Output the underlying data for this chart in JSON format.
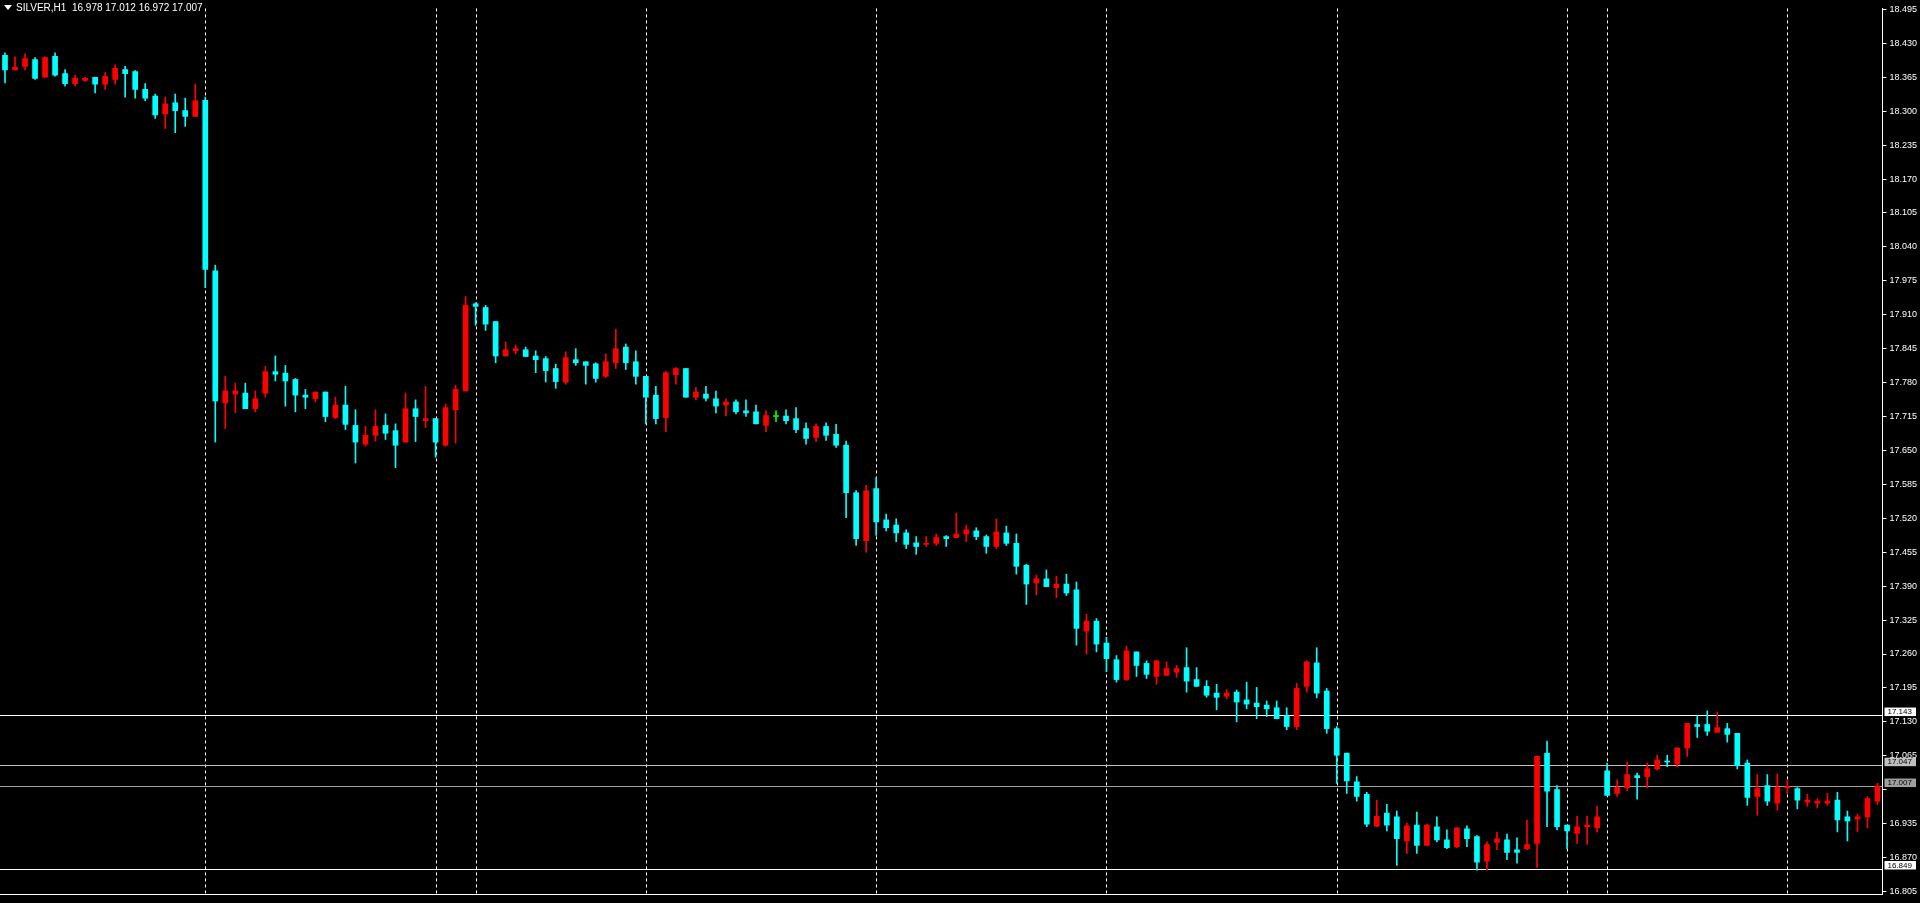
{
  "chart_data": {
    "type": "candlestick",
    "title": "SILVER,H1  16.978 17.012 16.972 17.007",
    "categories": [
      null,
      null,
      null,
      null,
      null,
      null,
      null,
      null,
      null,
      null,
      null,
      null,
      null,
      null,
      null,
      null,
      null,
      null,
      null,
      null,
      null,
      null,
      null,
      null,
      null,
      null,
      null,
      null,
      null,
      null,
      null,
      null,
      null,
      null,
      null,
      null,
      null,
      null,
      null,
      null,
      null,
      null,
      null,
      null,
      null,
      null,
      null,
      null,
      null,
      null,
      null,
      null,
      null,
      null,
      null,
      null,
      null,
      null,
      null,
      null,
      null,
      null,
      null,
      null,
      null,
      null,
      null,
      null,
      null,
      null,
      null,
      null,
      null,
      null,
      null,
      null,
      null,
      null,
      null,
      null,
      null,
      null,
      null,
      null,
      null,
      null,
      null,
      null,
      null,
      null,
      null,
      null,
      null,
      null,
      null,
      null,
      null,
      null,
      null,
      null,
      null,
      null,
      null,
      null,
      null,
      null,
      null,
      null,
      null,
      null,
      null,
      null,
      null,
      null,
      null,
      null,
      null,
      null,
      null,
      null,
      null,
      null,
      null,
      null,
      null,
      null,
      null,
      null,
      null,
      null,
      null,
      null,
      null,
      null,
      null,
      null,
      null,
      null,
      null,
      null,
      null,
      null,
      null,
      null,
      null,
      null,
      null,
      null,
      null,
      null,
      null,
      null,
      null,
      null,
      null,
      null,
      null,
      null,
      null,
      null,
      null,
      null,
      null,
      null,
      null,
      null,
      null,
      null,
      null,
      null,
      null,
      null,
      null,
      null,
      null,
      null,
      null,
      null,
      null,
      null,
      null,
      null,
      null,
      null,
      null,
      null,
      null,
      null
    ],
    "ohlc": [
      [
        18.407,
        18.412,
        18.354,
        18.379
      ],
      [
        18.379,
        18.404,
        18.379,
        18.384
      ],
      [
        18.386,
        18.41,
        18.379,
        18.401
      ],
      [
        18.399,
        18.403,
        18.361,
        18.363
      ],
      [
        18.365,
        18.404,
        18.365,
        18.403
      ],
      [
        18.405,
        18.412,
        18.367,
        18.369
      ],
      [
        18.372,
        18.38,
        18.348,
        18.353
      ],
      [
        18.353,
        18.369,
        18.348,
        18.363
      ],
      [
        18.359,
        18.365,
        18.357,
        18.363
      ],
      [
        18.365,
        18.365,
        18.335,
        18.352
      ],
      [
        18.352,
        18.374,
        18.342,
        18.367
      ],
      [
        18.361,
        18.389,
        18.352,
        18.382
      ],
      [
        18.38,
        18.386,
        18.327,
        18.372
      ],
      [
        18.376,
        18.378,
        18.325,
        18.342
      ],
      [
        18.342,
        18.353,
        18.32,
        18.325
      ],
      [
        18.329,
        18.333,
        18.286,
        18.293
      ],
      [
        18.295,
        18.327,
        18.267,
        18.314
      ],
      [
        18.316,
        18.333,
        18.259,
        18.301
      ],
      [
        18.301,
        18.325,
        18.271,
        18.29
      ],
      [
        18.29,
        18.352,
        18.29,
        18.32
      ],
      [
        18.321,
        18.327,
        17.962,
        17.997
      ],
      [
        17.994,
        18.005,
        17.666,
        17.745
      ],
      [
        17.741,
        17.792,
        17.692,
        17.764
      ],
      [
        17.758,
        17.779,
        17.722,
        17.764
      ],
      [
        17.76,
        17.779,
        17.73,
        17.73
      ],
      [
        17.73,
        17.764,
        17.724,
        17.749
      ],
      [
        17.76,
        17.811,
        17.752,
        17.801
      ],
      [
        17.801,
        17.831,
        17.783,
        17.796
      ],
      [
        17.798,
        17.813,
        17.735,
        17.783
      ],
      [
        17.786,
        17.788,
        17.724,
        17.756
      ],
      [
        17.756,
        17.767,
        17.73,
        17.752
      ],
      [
        17.749,
        17.762,
        17.743,
        17.762
      ],
      [
        17.762,
        17.762,
        17.705,
        17.715
      ],
      [
        17.713,
        17.752,
        17.711,
        17.737
      ],
      [
        17.737,
        17.773,
        17.69,
        17.7
      ],
      [
        17.698,
        17.728,
        17.626,
        17.666
      ],
      [
        17.662,
        17.696,
        17.658,
        17.679
      ],
      [
        17.679,
        17.728,
        17.668,
        17.696
      ],
      [
        17.698,
        17.72,
        17.671,
        17.683
      ],
      [
        17.688,
        17.701,
        17.617,
        17.66
      ],
      [
        17.666,
        17.76,
        17.666,
        17.73
      ],
      [
        17.73,
        17.747,
        17.667,
        17.715
      ],
      [
        17.707,
        17.773,
        17.694,
        17.711
      ],
      [
        17.711,
        17.711,
        17.637,
        17.666
      ],
      [
        17.66,
        17.739,
        17.658,
        17.732
      ],
      [
        17.728,
        17.775,
        17.664,
        17.767
      ],
      [
        17.764,
        17.945,
        17.764,
        17.928
      ],
      [
        17.931,
        17.933,
        17.89,
        17.926
      ],
      [
        17.924,
        17.928,
        17.88,
        17.892
      ],
      [
        17.897,
        17.897,
        17.818,
        17.831
      ],
      [
        17.831,
        17.858,
        17.831,
        17.843
      ],
      [
        17.841,
        17.852,
        17.835,
        17.845
      ],
      [
        17.843,
        17.848,
        17.83,
        17.83
      ],
      [
        17.831,
        17.841,
        17.799,
        17.824
      ],
      [
        17.826,
        17.83,
        17.781,
        17.803
      ],
      [
        17.807,
        17.815,
        17.769,
        17.782
      ],
      [
        17.781,
        17.839,
        17.777,
        17.828
      ],
      [
        17.824,
        17.845,
        17.813,
        17.818
      ],
      [
        17.82,
        17.82,
        17.777,
        17.813
      ],
      [
        17.816,
        17.818,
        17.781,
        17.788
      ],
      [
        17.792,
        17.835,
        17.79,
        17.82
      ],
      [
        17.818,
        17.882,
        17.807,
        17.845
      ],
      [
        17.848,
        17.854,
        17.805,
        17.818
      ],
      [
        17.82,
        17.841,
        17.777,
        17.792
      ],
      [
        17.792,
        17.792,
        17.701,
        17.752
      ],
      [
        17.756,
        17.773,
        17.701,
        17.711
      ],
      [
        17.713,
        17.801,
        17.686,
        17.799
      ],
      [
        17.795,
        17.809,
        17.777,
        17.807
      ],
      [
        17.807,
        17.807,
        17.752,
        17.752
      ],
      [
        17.752,
        17.771,
        17.747,
        17.762
      ],
      [
        17.758,
        17.773,
        17.745,
        17.75
      ],
      [
        17.749,
        17.764,
        17.722,
        17.735
      ],
      [
        17.737,
        17.749,
        17.716,
        17.743
      ],
      [
        17.743,
        17.747,
        17.72,
        17.724
      ],
      [
        17.726,
        17.747,
        17.715,
        17.722
      ],
      [
        17.724,
        17.737,
        17.701,
        17.701
      ],
      [
        17.698,
        17.726,
        17.686,
        17.717
      ],
      [
        17.715,
        17.726,
        17.705,
        17.715
      ],
      [
        17.716,
        17.728,
        17.701,
        17.707
      ],
      [
        17.711,
        17.732,
        17.684,
        17.69
      ],
      [
        17.692,
        17.703,
        17.662,
        17.673
      ],
      [
        17.675,
        17.701,
        17.667,
        17.696
      ],
      [
        17.696,
        17.703,
        17.669,
        17.679
      ],
      [
        17.681,
        17.7,
        17.656,
        17.66
      ],
      [
        17.66,
        17.668,
        17.521,
        17.569
      ],
      [
        17.569,
        17.573,
        17.468,
        17.481
      ],
      [
        17.477,
        17.583,
        17.455,
        17.573
      ],
      [
        17.577,
        17.598,
        17.487,
        17.513
      ],
      [
        17.517,
        17.528,
        17.496,
        17.502
      ],
      [
        17.507,
        17.519,
        17.475,
        17.492
      ],
      [
        17.492,
        17.498,
        17.462,
        17.47
      ],
      [
        17.473,
        17.485,
        17.451,
        17.466
      ],
      [
        17.47,
        17.485,
        17.466,
        17.472
      ],
      [
        17.472,
        17.49,
        17.468,
        17.483
      ],
      [
        17.485,
        17.487,
        17.466,
        17.481
      ],
      [
        17.483,
        17.53,
        17.483,
        17.49
      ],
      [
        17.49,
        17.507,
        17.475,
        17.498
      ],
      [
        17.496,
        17.502,
        17.479,
        17.485
      ],
      [
        17.485,
        17.488,
        17.453,
        17.466
      ],
      [
        17.466,
        17.519,
        17.462,
        17.494
      ],
      [
        17.492,
        17.505,
        17.468,
        17.472
      ],
      [
        17.472,
        17.49,
        17.413,
        17.428
      ],
      [
        17.43,
        17.432,
        17.355,
        17.394
      ],
      [
        17.396,
        17.411,
        17.373,
        17.404
      ],
      [
        17.404,
        17.421,
        17.389,
        17.389
      ],
      [
        17.387,
        17.409,
        17.368,
        17.394
      ],
      [
        17.394,
        17.413,
        17.372,
        17.377
      ],
      [
        17.383,
        17.398,
        17.277,
        17.309
      ],
      [
        17.304,
        17.336,
        17.26,
        17.323
      ],
      [
        17.323,
        17.328,
        17.264,
        17.279
      ],
      [
        17.281,
        17.292,
        17.226,
        17.251
      ],
      [
        17.249,
        17.257,
        17.206,
        17.211
      ],
      [
        17.211,
        17.275,
        17.209,
        17.266
      ],
      [
        17.264,
        17.264,
        17.217,
        17.238
      ],
      [
        17.242,
        17.247,
        17.213,
        17.221
      ],
      [
        17.217,
        17.247,
        17.202,
        17.247
      ],
      [
        17.219,
        17.245,
        17.219,
        17.232
      ],
      [
        17.225,
        17.238,
        17.215,
        17.232
      ],
      [
        17.234,
        17.272,
        17.187,
        17.208
      ],
      [
        17.211,
        17.234,
        17.198,
        17.198
      ],
      [
        17.198,
        17.209,
        17.177,
        17.181
      ],
      [
        17.185,
        17.202,
        17.153,
        17.177
      ],
      [
        17.179,
        17.192,
        17.174,
        17.185
      ],
      [
        17.187,
        17.191,
        17.13,
        17.168
      ],
      [
        17.172,
        17.206,
        17.155,
        17.164
      ],
      [
        17.166,
        17.196,
        17.136,
        17.159
      ],
      [
        17.162,
        17.17,
        17.14,
        17.155
      ],
      [
        17.157,
        17.17,
        17.136,
        17.136
      ],
      [
        17.142,
        17.157,
        17.115,
        17.121
      ],
      [
        17.121,
        17.204,
        17.115,
        17.194
      ],
      [
        17.198,
        17.247,
        17.187,
        17.245
      ],
      [
        17.243,
        17.272,
        17.176,
        17.185
      ],
      [
        17.189,
        17.194,
        17.108,
        17.117
      ],
      [
        17.117,
        17.121,
        17.012,
        17.066
      ],
      [
        17.07,
        17.07,
        16.993,
        17.017
      ],
      [
        17.015,
        17.025,
        16.978,
        16.987
      ],
      [
        16.991,
        16.995,
        16.929,
        16.934
      ],
      [
        16.93,
        16.98,
        16.929,
        16.949
      ],
      [
        16.955,
        16.972,
        16.921,
        16.932
      ],
      [
        16.948,
        16.959,
        16.855,
        16.906
      ],
      [
        16.902,
        16.936,
        16.878,
        16.931
      ],
      [
        16.932,
        16.957,
        16.878,
        16.893
      ],
      [
        16.893,
        16.934,
        16.893,
        16.932
      ],
      [
        16.929,
        16.948,
        16.9,
        16.904
      ],
      [
        16.904,
        16.923,
        16.887,
        16.889
      ],
      [
        16.891,
        16.927,
        16.889,
        16.927
      ],
      [
        16.925,
        16.931,
        16.891,
        16.906
      ],
      [
        16.91,
        16.912,
        16.846,
        16.861
      ],
      [
        16.863,
        16.9,
        16.846,
        16.895
      ],
      [
        16.899,
        16.919,
        16.885,
        16.906
      ],
      [
        16.904,
        16.915,
        16.866,
        16.88
      ],
      [
        16.885,
        16.908,
        16.859,
        16.88
      ],
      [
        16.887,
        16.942,
        16.885,
        16.895
      ],
      [
        16.897,
        17.064,
        16.851,
        17.064
      ],
      [
        17.07,
        17.093,
        16.929,
        16.997
      ],
      [
        17.0,
        17.008,
        16.923,
        16.929
      ],
      [
        16.932,
        16.932,
        16.887,
        16.921
      ],
      [
        16.916,
        16.949,
        16.897,
        16.929
      ],
      [
        16.929,
        16.949,
        16.895,
        16.932
      ],
      [
        16.927,
        16.968,
        16.919,
        16.948
      ],
      [
        17.036,
        17.051,
        16.989,
        16.989
      ],
      [
        16.993,
        17.019,
        16.987,
        17.004
      ],
      [
        17.004,
        17.053,
        16.998,
        17.029
      ],
      [
        17.027,
        17.032,
        16.982,
        17.023
      ],
      [
        17.025,
        17.051,
        17.004,
        17.04
      ],
      [
        17.04,
        17.066,
        17.038,
        17.057
      ],
      [
        17.055,
        17.066,
        17.044,
        17.053
      ],
      [
        17.049,
        17.08,
        17.044,
        17.08
      ],
      [
        17.08,
        17.127,
        17.064,
        17.127
      ],
      [
        17.125,
        17.142,
        17.1,
        17.121
      ],
      [
        17.125,
        17.151,
        17.104,
        17.112
      ],
      [
        17.11,
        17.149,
        17.11,
        17.119
      ],
      [
        17.117,
        17.127,
        17.091,
        17.106
      ],
      [
        17.108,
        17.108,
        17.04,
        17.046
      ],
      [
        17.051,
        17.057,
        16.97,
        16.985
      ],
      [
        16.987,
        17.029,
        16.951,
        17.002
      ],
      [
        17.008,
        17.029,
        16.97,
        16.978
      ],
      [
        16.974,
        17.03,
        16.961,
        17.004
      ],
      [
        17.004,
        17.019,
        16.993,
        17.005
      ],
      [
        17.002,
        17.004,
        16.963,
        16.98
      ],
      [
        16.976,
        16.991,
        16.968,
        16.98
      ],
      [
        16.974,
        16.983,
        16.965,
        16.978
      ],
      [
        16.974,
        16.993,
        16.97,
        16.978
      ],
      [
        16.98,
        16.995,
        16.919,
        16.942
      ],
      [
        16.948,
        16.959,
        16.902,
        16.94
      ],
      [
        16.944,
        16.953,
        16.919,
        16.948
      ],
      [
        16.948,
        16.987,
        16.927,
        16.983
      ],
      [
        16.978,
        17.012,
        16.972,
        17.007
      ]
    ],
    "colors": [
      "#00ffff",
      "#ff0000",
      "#ff0000",
      "#00ffff",
      "#ff0000",
      "#00ffff",
      "#00ffff",
      "#ff0000",
      "#ff0000",
      "#00ffff",
      "#ff0000",
      "#ff0000",
      "#00ffff",
      "#00ffff",
      "#00ffff",
      "#00ffff",
      "#ff0000",
      "#00ffff",
      "#00ffff",
      "#ff0000",
      "#00ffff",
      "#00ffff",
      "#ff0000",
      "#ff0000",
      "#00ffff",
      "#ff0000",
      "#ff0000",
      "#00ffff",
      "#00ffff",
      "#00ffff",
      "#00ffff",
      "#ff0000",
      "#00ffff",
      "#ff0000",
      "#00ffff",
      "#00ffff",
      "#ff0000",
      "#ff0000",
      "#00ffff",
      "#00ffff",
      "#ff0000",
      "#00ffff",
      "#ff0000",
      "#00ffff",
      "#ff0000",
      "#ff0000",
      "#ff0000",
      "#00ffff",
      "#00ffff",
      "#00ffff",
      "#ff0000",
      "#ff0000",
      "#00ffff",
      "#00ffff",
      "#00ffff",
      "#00ffff",
      "#ff0000",
      "#00ffff",
      "#00ffff",
      "#00ffff",
      "#ff0000",
      "#ff0000",
      "#00ffff",
      "#00ffff",
      "#00ffff",
      "#00ffff",
      "#ff0000",
      "#ff0000",
      "#00ffff",
      "#ff0000",
      "#00ffff",
      "#00ffff",
      "#ff0000",
      "#00ffff",
      "#00ffff",
      "#00ffff",
      "#ff0000",
      "#00ff00",
      "#00ffff",
      "#00ffff",
      "#00ffff",
      "#ff0000",
      "#00ffff",
      "#00ffff",
      "#00ffff",
      "#00ffff",
      "#ff0000",
      "#00ffff",
      "#00ffff",
      "#00ffff",
      "#00ffff",
      "#00ffff",
      "#ff0000",
      "#ff0000",
      "#00ffff",
      "#ff0000",
      "#ff0000",
      "#00ffff",
      "#00ffff",
      "#ff0000",
      "#00ffff",
      "#00ffff",
      "#00ffff",
      "#ff0000",
      "#00ffff",
      "#ff0000",
      "#00ffff",
      "#00ffff",
      "#ff0000",
      "#00ffff",
      "#00ffff",
      "#00ffff",
      "#ff0000",
      "#00ffff",
      "#00ffff",
      "#ff0000",
      "#ff0000",
      "#ff0000",
      "#00ffff",
      "#00ffff",
      "#00ffff",
      "#00ffff",
      "#ff0000",
      "#00ffff",
      "#00ffff",
      "#00ffff",
      "#00ffff",
      "#00ffff",
      "#00ffff",
      "#ff0000",
      "#ff0000",
      "#00ffff",
      "#00ffff",
      "#00ffff",
      "#00ffff",
      "#00ffff",
      "#00ffff",
      "#ff0000",
      "#00ffff",
      "#00ffff",
      "#ff0000",
      "#00ffff",
      "#ff0000",
      "#00ffff",
      "#00ffff",
      "#ff0000",
      "#00ffff",
      "#00ffff",
      "#ff0000",
      "#ff0000",
      "#00ffff",
      "#00ffff",
      "#ff0000",
      "#ff0000",
      "#00ffff",
      "#00ffff",
      "#00ffff",
      "#ff0000",
      "#ff0000",
      "#ff0000",
      "#00ffff",
      "#ff0000",
      "#ff0000",
      "#00ffff",
      "#ff0000",
      "#ff0000",
      "#00ffff",
      "#ff0000",
      "#ff0000",
      "#00ffff",
      "#00ffff",
      "#ff0000",
      "#00ffff",
      "#00ffff",
      "#00ffff",
      "#ff0000",
      "#00ffff",
      "#ff0000",
      "#ff0000",
      "#00ffff",
      "#ff0000",
      "#ff0000",
      "#ff0000",
      "#00ffff",
      "#00ffff",
      "#ff0000",
      "#ff0000",
      "#ff0000"
    ],
    "ylim": [
      16.799,
      18.497
    ],
    "yticks": [
      {
        "value": 18.495,
        "label": "18.495"
      },
      {
        "value": 18.43,
        "label": "18.430"
      },
      {
        "value": 18.365,
        "label": "18.365"
      },
      {
        "value": 18.3,
        "label": "18.300"
      },
      {
        "value": 18.235,
        "label": "18.235"
      },
      {
        "value": 18.17,
        "label": "18.170"
      },
      {
        "value": 18.105,
        "label": "18.105"
      },
      {
        "value": 18.04,
        "label": "18.040"
      },
      {
        "value": 17.975,
        "label": "17.975"
      },
      {
        "value": 17.91,
        "label": "17.910"
      },
      {
        "value": 17.845,
        "label": "17.845"
      },
      {
        "value": 17.78,
        "label": "17.780"
      },
      {
        "value": 17.715,
        "label": "17.715"
      },
      {
        "value": 17.65,
        "label": "17.650"
      },
      {
        "value": 17.585,
        "label": "17.585"
      },
      {
        "value": 17.52,
        "label": "17.520"
      },
      {
        "value": 17.455,
        "label": "17.455"
      },
      {
        "value": 17.39,
        "label": "17.390"
      },
      {
        "value": 17.325,
        "label": "17.325"
      },
      {
        "value": 17.26,
        "label": "17.260"
      },
      {
        "value": 17.195,
        "label": "17.195"
      },
      {
        "value": 17.13,
        "label": "17.130"
      },
      {
        "value": 17.065,
        "label": "17.065"
      },
      {
        "value": 17.0,
        "label": null
      },
      {
        "value": 16.935,
        "label": "16.935"
      },
      {
        "value": 16.87,
        "label": "16.870"
      },
      {
        "value": 16.805,
        "label": "16.805"
      }
    ],
    "ref_lines": [
      {
        "axis": "y",
        "value": 17.143,
        "label": "17.143",
        "color": "#ffffff"
      },
      {
        "axis": "y",
        "value": 17.047,
        "label": "17.047",
        "color": "#c0c0c0"
      },
      {
        "axis": "y",
        "value": 17.007,
        "label": "17.007",
        "color": "#a0a0a0"
      },
      {
        "axis": "y",
        "value": 16.849,
        "label": "16.849",
        "color": "#ffffff"
      }
    ],
    "tick_labels": "y"
  }
}
